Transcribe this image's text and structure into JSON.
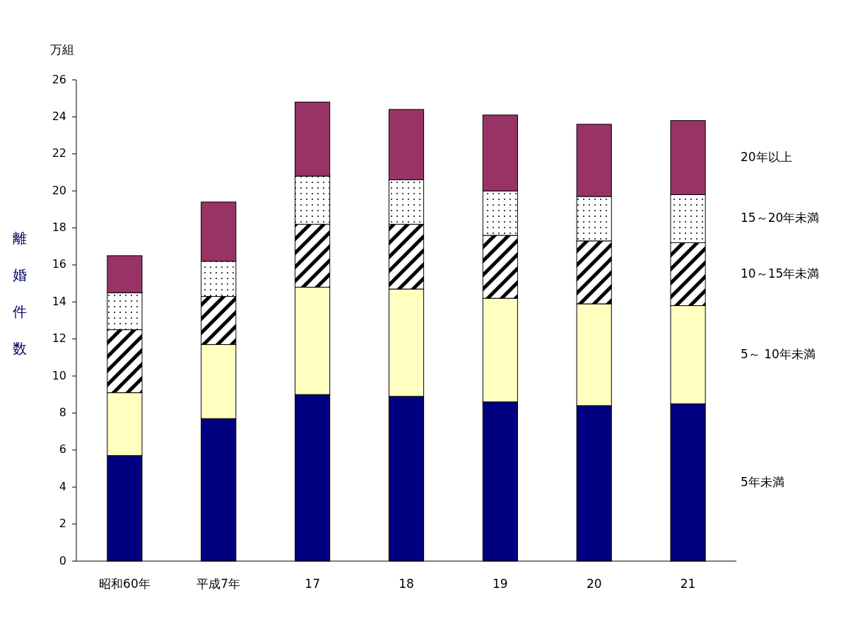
{
  "chart_data": {
    "type": "bar",
    "stacked": true,
    "ylabel": "離婚件数",
    "annotations": [
      "万組"
    ],
    "categories": [
      "昭和60年",
      "平成7年",
      "17",
      "18",
      "19",
      "20",
      "21"
    ],
    "series": [
      {
        "name": "5年未満",
        "color": "#000080",
        "values": [
          5.7,
          7.7,
          9.0,
          8.9,
          8.6,
          8.4,
          8.5
        ]
      },
      {
        "name": "5～ 10年未満",
        "color": "#ffffc0",
        "values": [
          3.4,
          4.0,
          5.8,
          5.8,
          5.6,
          5.5,
          5.3
        ]
      },
      {
        "name": "10～15年未満",
        "color": "#000000",
        "values": [
          3.4,
          2.6,
          3.4,
          3.5,
          3.4,
          3.4,
          3.4
        ]
      },
      {
        "name": "15～20年未満",
        "color": "#000000",
        "values": [
          2.0,
          1.9,
          2.6,
          2.4,
          2.4,
          2.4,
          2.6
        ]
      },
      {
        "name": "20年以上",
        "color": "#993366",
        "values": [
          2.0,
          3.2,
          4.0,
          3.8,
          4.1,
          3.9,
          4.0
        ]
      }
    ],
    "ylim": [
      0,
      26
    ],
    "yticks": [
      0,
      2,
      4,
      6,
      8,
      10,
      12,
      14,
      16,
      18,
      20,
      22,
      24,
      26
    ],
    "grid": false,
    "legend": "right"
  }
}
